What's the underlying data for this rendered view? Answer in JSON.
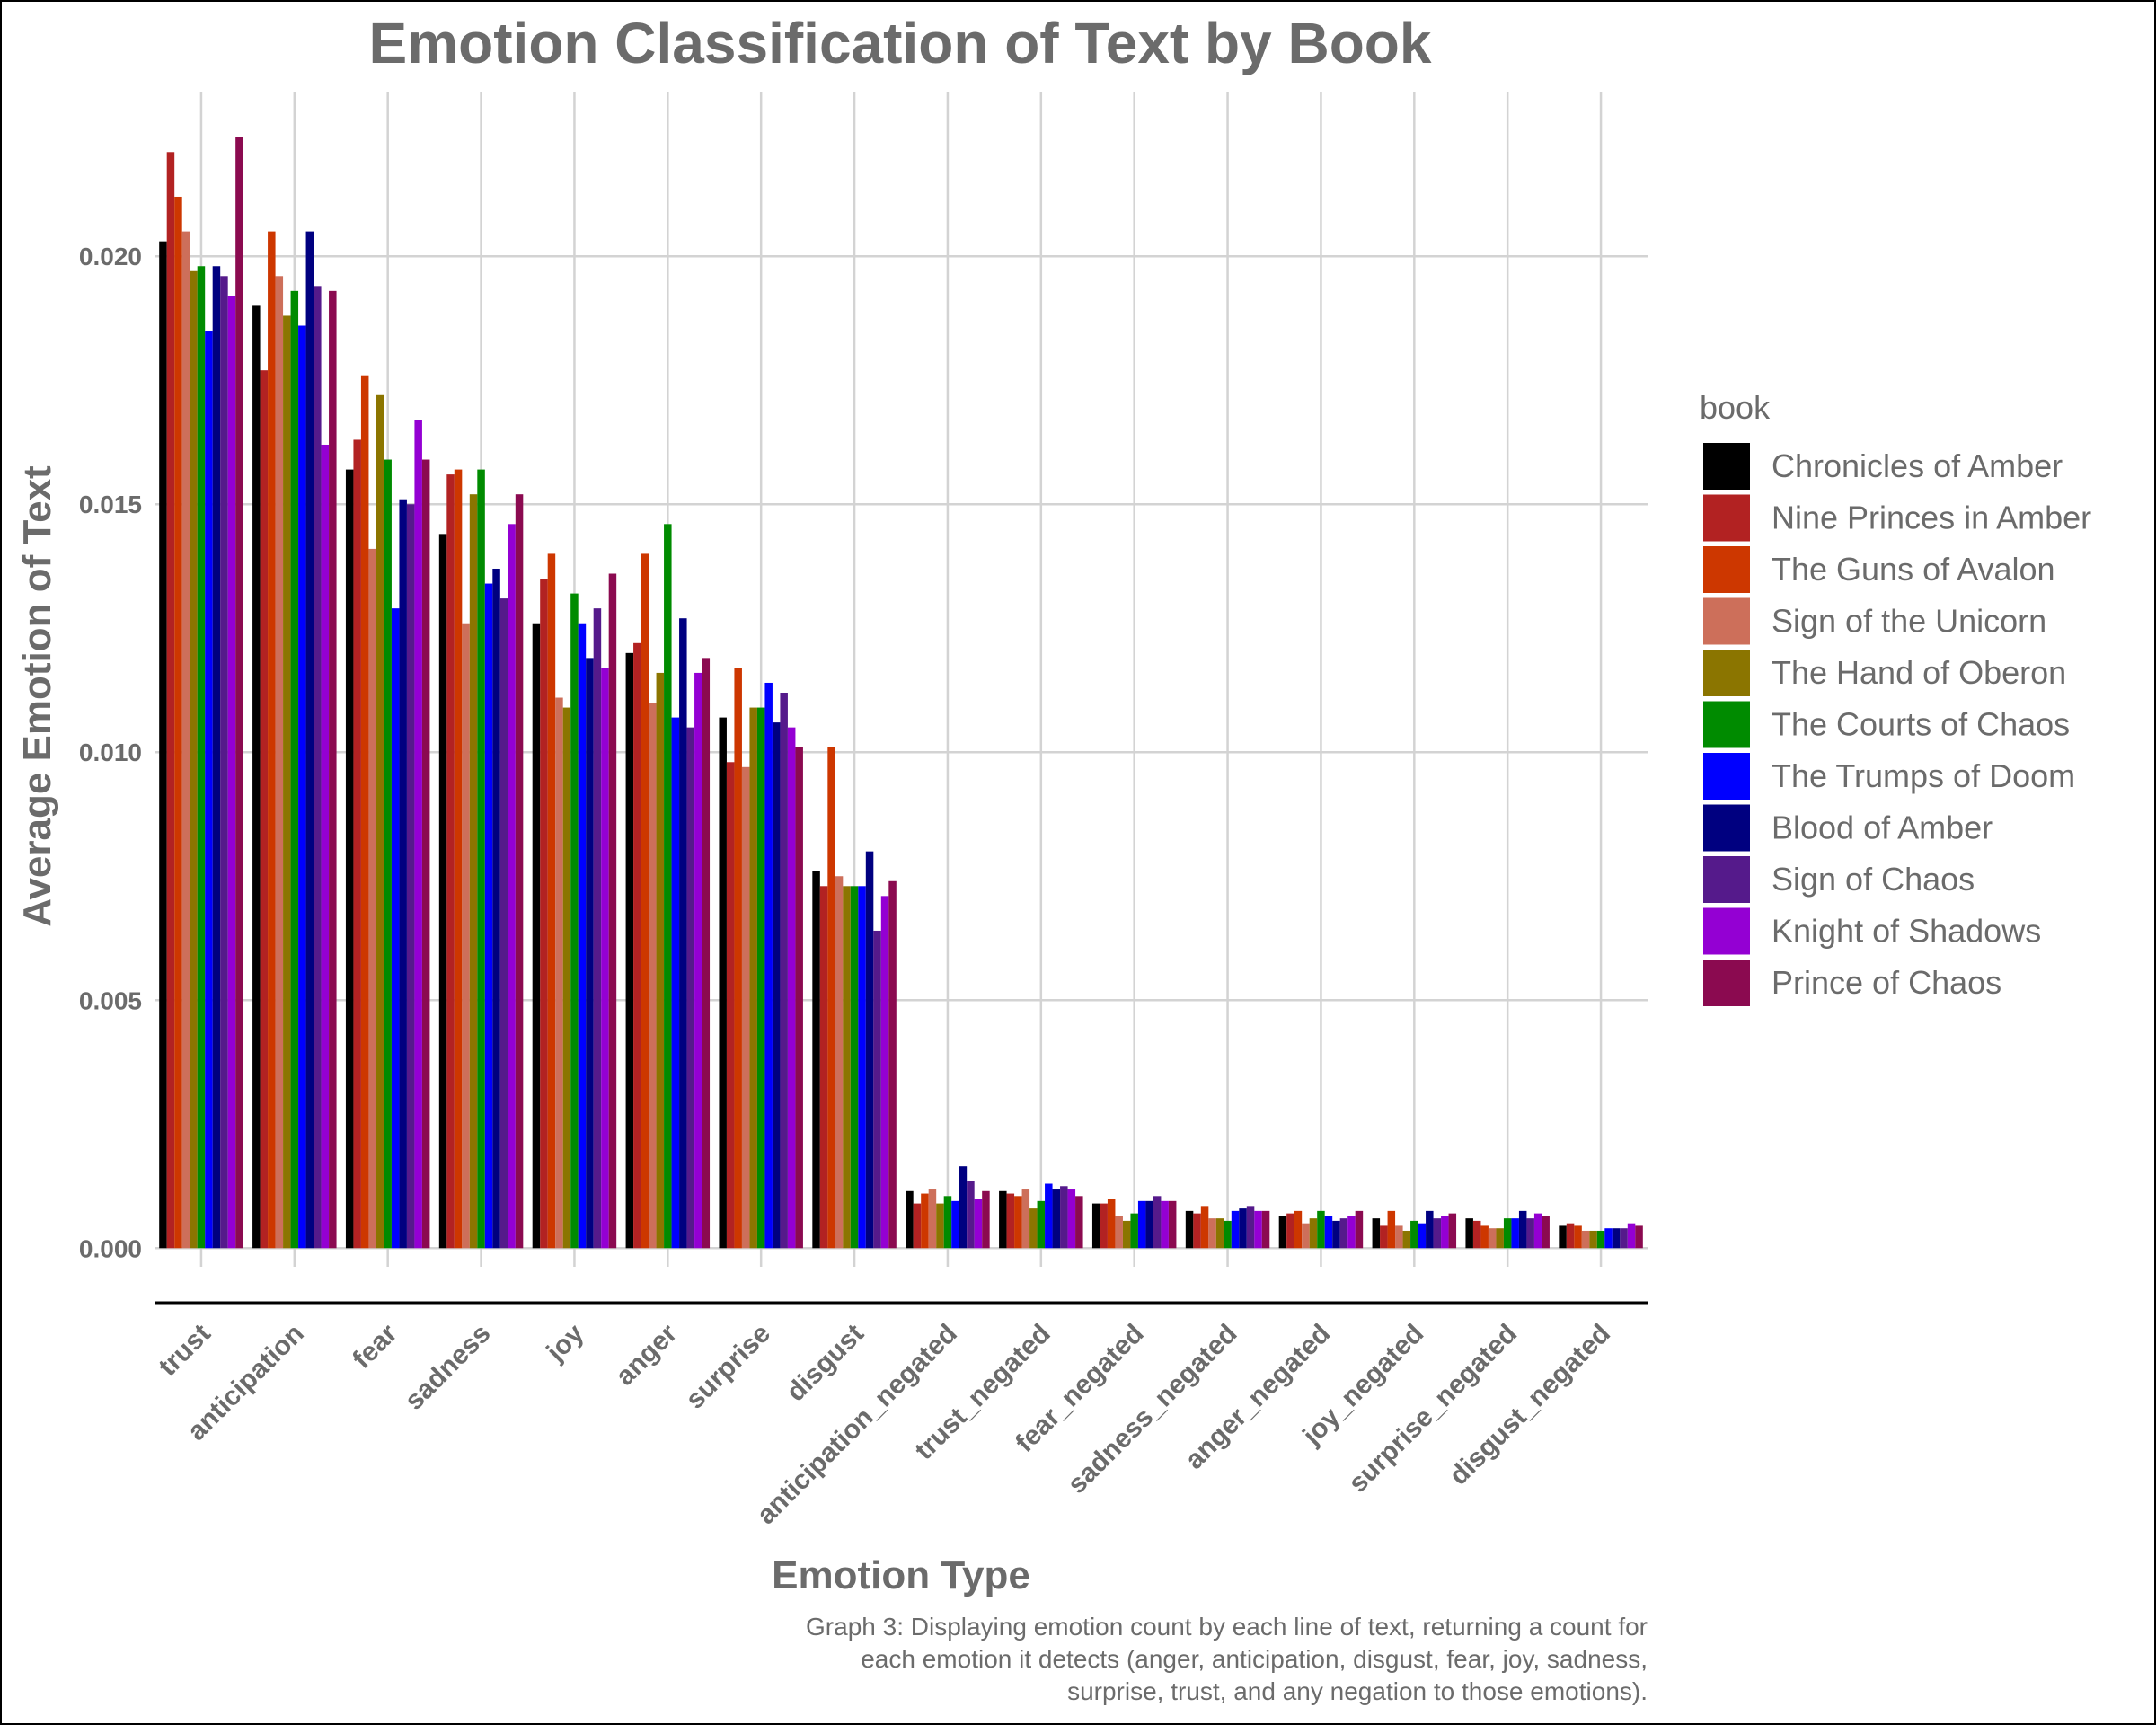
{
  "chart_data": {
    "type": "bar",
    "title": "Emotion Classification of Text by Book",
    "xlabel": "Emotion Type",
    "ylabel": "Average Emotion of Text",
    "ylim": [
      -0.0011,
      0.0235
    ],
    "yticks": [
      0.0,
      0.005,
      0.01,
      0.015,
      0.02
    ],
    "ytick_labels": [
      "0.000",
      "0.005",
      "0.010",
      "0.015",
      "0.020"
    ],
    "grid": true,
    "legend_title": "book",
    "legend_position": "right",
    "caption": [
      "Graph 3: Displaying emotion count by each line of text, returning a count for",
      "each emotion it detects (anger, anticipation, disgust, fear, joy, sadness,",
      "surprise, trust, and any negation to those emotions)."
    ],
    "categories": [
      "trust",
      "anticipation",
      "fear",
      "sadness",
      "joy",
      "anger",
      "surprise",
      "disgust",
      "anticipation_negated",
      "trust_negated",
      "fear_negated",
      "sadness_negated",
      "anger_negated",
      "joy_negated",
      "surprise_negated",
      "disgust_negated"
    ],
    "series": [
      {
        "name": "Chronicles of Amber",
        "color": "#000000",
        "values": [
          0.0203,
          0.019,
          0.0157,
          0.0144,
          0.0126,
          0.012,
          0.0107,
          0.0076,
          0.00115,
          0.00115,
          0.0009,
          0.00075,
          0.00065,
          0.0006,
          0.0006,
          0.00045
        ]
      },
      {
        "name": "Nine Princes in Amber",
        "color": "#b22222",
        "values": [
          0.0221,
          0.0177,
          0.0163,
          0.0156,
          0.0135,
          0.0122,
          0.0098,
          0.0073,
          0.0009,
          0.0011,
          0.0009,
          0.0007,
          0.0007,
          0.00045,
          0.00055,
          0.0005
        ]
      },
      {
        "name": "The Guns of Avalon",
        "color": "#cd3700",
        "values": [
          0.0212,
          0.0205,
          0.0176,
          0.0157,
          0.014,
          0.014,
          0.0117,
          0.0101,
          0.0011,
          0.00105,
          0.001,
          0.00085,
          0.00075,
          0.00075,
          0.00045,
          0.00045
        ]
      },
      {
        "name": "Sign of the Unicorn",
        "color": "#cd6f5a",
        "values": [
          0.0205,
          0.0196,
          0.0141,
          0.0126,
          0.0111,
          0.011,
          0.0097,
          0.0075,
          0.0012,
          0.0012,
          0.00065,
          0.0006,
          0.0005,
          0.00045,
          0.0004,
          0.00035
        ]
      },
      {
        "name": "The Hand of Oberon",
        "color": "#8b7500",
        "values": [
          0.0197,
          0.0188,
          0.0172,
          0.0152,
          0.0109,
          0.0116,
          0.0109,
          0.0073,
          0.0009,
          0.0008,
          0.00055,
          0.0006,
          0.0006,
          0.00035,
          0.0004,
          0.00035
        ]
      },
      {
        "name": "The Courts of Chaos",
        "color": "#008b00",
        "values": [
          0.0198,
          0.0193,
          0.0159,
          0.0157,
          0.0132,
          0.0146,
          0.0109,
          0.0073,
          0.00105,
          0.00095,
          0.0007,
          0.00055,
          0.00075,
          0.00055,
          0.0006,
          0.00035
        ]
      },
      {
        "name": "The Trumps of Doom",
        "color": "#0000ff",
        "values": [
          0.0185,
          0.0186,
          0.0129,
          0.0134,
          0.0126,
          0.0107,
          0.0114,
          0.0073,
          0.00095,
          0.0013,
          0.00095,
          0.00075,
          0.00065,
          0.0005,
          0.0006,
          0.0004
        ]
      },
      {
        "name": "Blood of Amber",
        "color": "#000080",
        "values": [
          0.0198,
          0.0205,
          0.0151,
          0.0137,
          0.0119,
          0.0127,
          0.0106,
          0.008,
          0.00165,
          0.0012,
          0.00095,
          0.0008,
          0.00055,
          0.00075,
          0.00075,
          0.0004
        ]
      },
      {
        "name": "Sign of Chaos",
        "color": "#551a8b",
        "values": [
          0.0196,
          0.0194,
          0.015,
          0.0131,
          0.0129,
          0.0105,
          0.0112,
          0.0064,
          0.00135,
          0.00125,
          0.00105,
          0.00085,
          0.0006,
          0.0006,
          0.0006,
          0.0004
        ]
      },
      {
        "name": "Knight of Shadows",
        "color": "#9400d3",
        "values": [
          0.0192,
          0.0162,
          0.0167,
          0.0146,
          0.0117,
          0.0116,
          0.0105,
          0.0071,
          0.001,
          0.0012,
          0.00095,
          0.00075,
          0.00065,
          0.00065,
          0.0007,
          0.0005
        ]
      },
      {
        "name": "Prince of Chaos",
        "color": "#8b0a50",
        "values": [
          0.0224,
          0.0193,
          0.0159,
          0.0152,
          0.0136,
          0.0119,
          0.0101,
          0.0074,
          0.00115,
          0.00105,
          0.00095,
          0.00075,
          0.00075,
          0.0007,
          0.00065,
          0.00045
        ]
      }
    ]
  }
}
